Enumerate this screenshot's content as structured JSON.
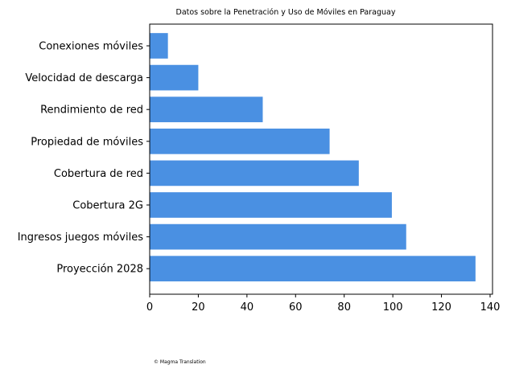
{
  "chart_data": {
    "type": "bar",
    "orientation": "horizontal",
    "title": "Datos sobre la Penetración y Uso de Móviles en Paraguay",
    "xlabel": "",
    "ylabel": "",
    "categories": [
      "Conexiones móviles",
      "Velocidad de descarga",
      "Rendimiento de red",
      "Propiedad de móviles",
      "Cobertura de red",
      "Cobertura 2G",
      "Ingresos juegos móviles",
      "Proyección 2028"
    ],
    "values": [
      7.5,
      20,
      46.5,
      74,
      86,
      99.6,
      105.5,
      134
    ],
    "xlim": [
      0,
      141
    ],
    "xticks": [
      0,
      20,
      40,
      60,
      80,
      100,
      120,
      140
    ],
    "bar_color": "#4a90e2",
    "grid": false,
    "legend": "none"
  },
  "footer": {
    "credit": "© Magma Translation"
  }
}
